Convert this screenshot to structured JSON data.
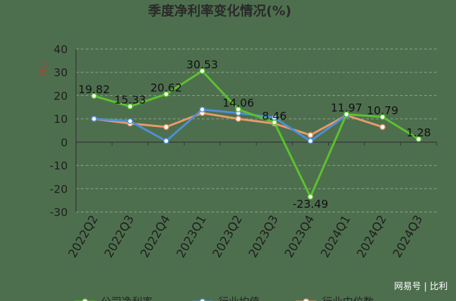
{
  "chart_data": {
    "type": "line",
    "title": "季度净利率变化情况(%)",
    "ylabel": "(%)",
    "ylim": [
      -30,
      40
    ],
    "yticks": [
      40,
      30,
      20,
      10,
      0,
      -10,
      -20,
      -30
    ],
    "categories": [
      "2022Q2",
      "2022Q3",
      "2022Q4",
      "2023Q1",
      "2023Q2",
      "2023Q3",
      "2023Q4",
      "2024Q1",
      "2024Q2",
      "2024Q3"
    ],
    "grid": true,
    "legend_position": "bottom",
    "series": [
      {
        "name": "公司净利率",
        "color": "#5cc22f",
        "values": [
          19.82,
          15.33,
          20.62,
          30.53,
          14.06,
          8.46,
          -23.49,
          11.97,
          10.79,
          1.28
        ],
        "labels": [
          "19.82",
          "15.33",
          "20.62",
          "30.53",
          "14.06",
          "8.46",
          "-23.49",
          "11.97",
          "10.79",
          "1.28"
        ]
      },
      {
        "name": "行业均值",
        "color": "#4f8fd6",
        "values": [
          10,
          9,
          0.5,
          14,
          12.5,
          10.5,
          0.5,
          11.5,
          null,
          null
        ]
      },
      {
        "name": "行业中位数",
        "color": "#e99a6a",
        "values": [
          10,
          8,
          6.5,
          12.5,
          10,
          8,
          3,
          11.5,
          6.5,
          null
        ]
      }
    ]
  },
  "watermark": "网易号 | 比利"
}
